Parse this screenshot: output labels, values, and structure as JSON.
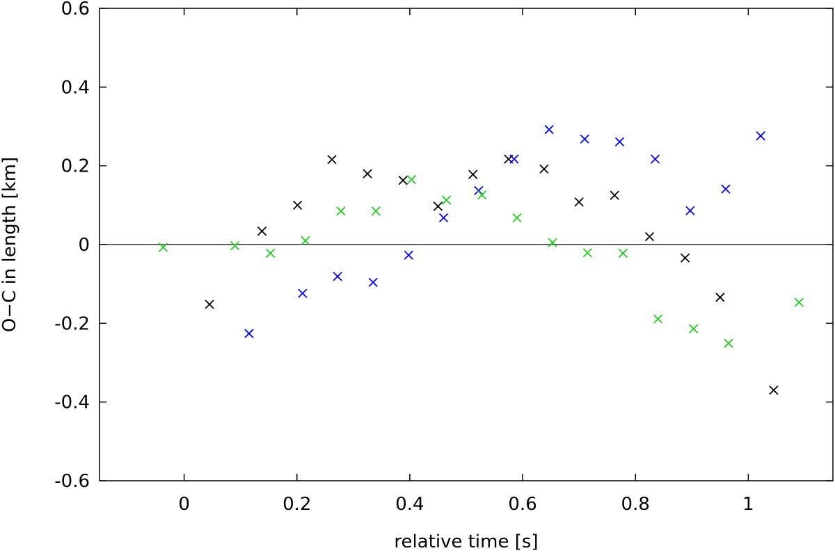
{
  "chart_data": {
    "type": "scatter",
    "title": "",
    "xlabel": "relative time [s]",
    "ylabel": "O−C in length [km]",
    "xlim": [
      -0.15,
      1.15
    ],
    "ylim": [
      -0.6,
      0.6
    ],
    "xticks": [
      0,
      0.2,
      0.4,
      0.6,
      0.8,
      1
    ],
    "xtick_labels": [
      "0",
      "0.2",
      "0.4",
      "0.6",
      "0.8",
      "1"
    ],
    "yticks": [
      -0.6,
      -0.4,
      -0.2,
      0,
      0.2,
      0.4,
      0.6
    ],
    "ytick_labels": [
      "-0.6",
      "-0.4",
      "-0.2",
      "0",
      "0.2",
      "0.4",
      "0.6"
    ],
    "zero_line": true,
    "grid": false,
    "marker": "x",
    "series": [
      {
        "color": "#000000",
        "points": [
          [
            0.045,
            -0.152
          ],
          [
            0.138,
            0.034
          ],
          [
            0.201,
            0.1
          ],
          [
            0.262,
            0.216
          ],
          [
            0.325,
            0.18
          ],
          [
            0.388,
            0.163
          ],
          [
            0.45,
            0.097
          ],
          [
            0.512,
            0.178
          ],
          [
            0.575,
            0.217
          ],
          [
            0.638,
            0.192
          ],
          [
            0.7,
            0.108
          ],
          [
            0.763,
            0.125
          ],
          [
            0.825,
            0.02
          ],
          [
            0.888,
            -0.034
          ],
          [
            0.95,
            -0.134
          ],
          [
            1.045,
            -0.37
          ]
        ]
      },
      {
        "color": "#0000ff",
        "points": [
          [
            0.115,
            -0.226
          ],
          [
            0.21,
            -0.124
          ],
          [
            0.272,
            -0.081
          ],
          [
            0.335,
            -0.096
          ],
          [
            0.398,
            -0.027
          ],
          [
            0.46,
            0.068
          ],
          [
            0.522,
            0.137
          ],
          [
            0.585,
            0.217
          ],
          [
            0.647,
            0.292
          ],
          [
            0.71,
            0.268
          ],
          [
            0.772,
            0.261
          ],
          [
            0.835,
            0.217
          ],
          [
            0.897,
            0.086
          ],
          [
            0.96,
            0.141
          ],
          [
            1.022,
            0.276
          ]
        ]
      },
      {
        "color": "#22cc22",
        "points": [
          [
            -0.037,
            -0.007
          ],
          [
            0.09,
            -0.003
          ],
          [
            0.153,
            -0.022
          ],
          [
            0.215,
            0.01
          ],
          [
            0.278,
            0.085
          ],
          [
            0.34,
            0.085
          ],
          [
            0.403,
            0.165
          ],
          [
            0.465,
            0.113
          ],
          [
            0.528,
            0.126
          ],
          [
            0.59,
            0.068
          ],
          [
            0.653,
            0.005
          ],
          [
            0.715,
            -0.021
          ],
          [
            0.778,
            -0.022
          ],
          [
            0.84,
            -0.189
          ],
          [
            0.903,
            -0.214
          ],
          [
            0.965,
            -0.251
          ],
          [
            1.09,
            -0.147
          ]
        ]
      }
    ]
  }
}
